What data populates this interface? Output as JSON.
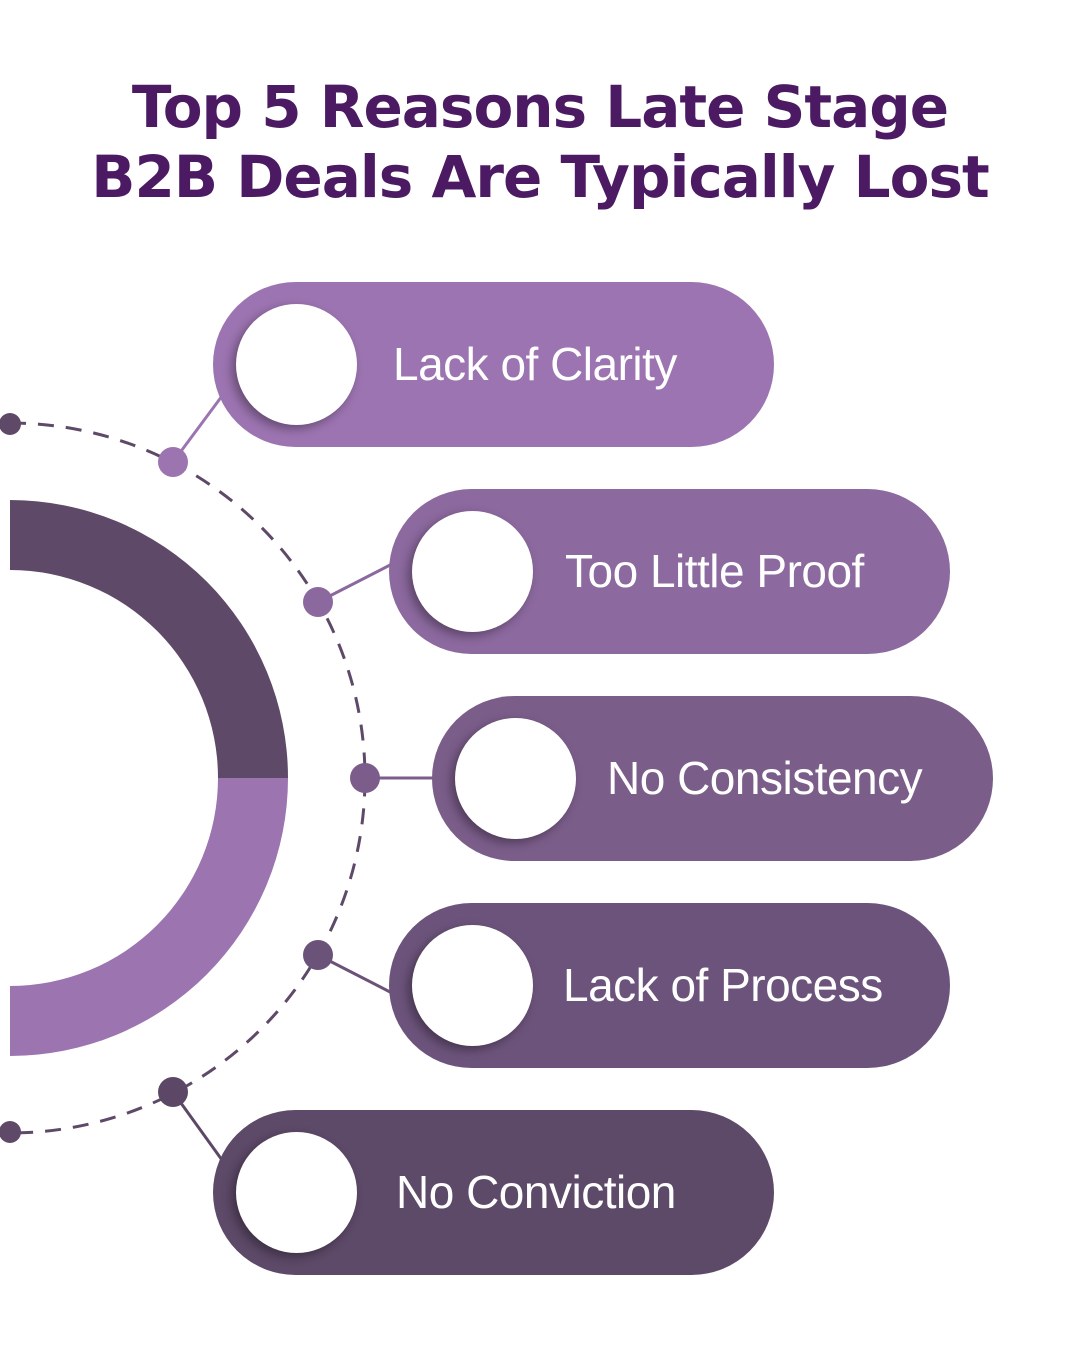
{
  "title": {
    "line1": "Top 5 Reasons Late Stage",
    "line2": "B2B Deals Are Typically Lost"
  },
  "colors": {
    "title": "#4b1a63",
    "ring_top": "#5e4a68",
    "ring_bottom": "#9b74b0",
    "connector": "#5e4a68"
  },
  "reasons": [
    {
      "label": "Lack of Clarity",
      "color": "#9c74b1"
    },
    {
      "label": "Too Little Proof",
      "color": "#8c699f"
    },
    {
      "label": "No Consistency",
      "color": "#7b5d8a"
    },
    {
      "label": "Lack of Process",
      "color": "#6c537b"
    },
    {
      "label": "No Conviction",
      "color": "#5d4968"
    }
  ]
}
